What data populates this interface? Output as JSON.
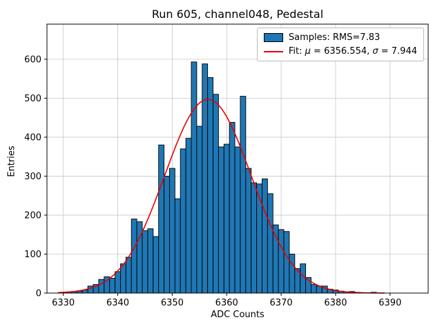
{
  "figure": {
    "title": "Run 605, channel048, Pedestal",
    "xlabel": "ADC Counts",
    "ylabel": "Entries"
  },
  "legend": {
    "samples_label": "Samples: RMS=7.83",
    "fit_prefix": "Fit: ",
    "fit_mu_symbol": "μ",
    "fit_mu_value": " = 6356.554, ",
    "fit_sigma_symbol": "σ",
    "fit_sigma_value": " = 7.944"
  },
  "chart_data": {
    "type": "bar",
    "subtype": "histogram-with-gaussian-fit",
    "title": "Run 605, channel048, Pedestal",
    "xlabel": "ADC Counts",
    "ylabel": "Entries",
    "bin_width": 1,
    "bin_centers_start": 6330,
    "counts": [
      2,
      3,
      4,
      5,
      8,
      18,
      22,
      35,
      42,
      38,
      55,
      75,
      92,
      190,
      183,
      160,
      165,
      145,
      380,
      300,
      320,
      242,
      370,
      397,
      593,
      428,
      588,
      553,
      510,
      375,
      382,
      438,
      375,
      505,
      320,
      283,
      280,
      293,
      255,
      175,
      163,
      158,
      100,
      63,
      75,
      40,
      22,
      18,
      18,
      10,
      8,
      5,
      3,
      4,
      2,
      1,
      1,
      2
    ],
    "samples_rms": 7.83,
    "fit": {
      "type": "gaussian",
      "mu": 6356.554,
      "sigma": 7.944,
      "amplitude": 497,
      "x_start": 6329,
      "x_end": 6389
    },
    "x_ticks": [
      6330,
      6340,
      6350,
      6360,
      6370,
      6380,
      6390
    ],
    "y_ticks": [
      0,
      100,
      200,
      300,
      400,
      500,
      600
    ],
    "xlim": [
      6327,
      6397
    ],
    "ylim": [
      0,
      690
    ],
    "grid": true,
    "legend_position": "upper right",
    "legend_entries": [
      "Samples: RMS=7.83",
      "Fit: μ = 6356.554, σ = 7.944"
    ],
    "colors": {
      "bar_fill": "#1f77b4",
      "bar_edge": "#000000",
      "fit_line": "#e60000",
      "grid": "#c8c8c8",
      "spine": "#000000"
    }
  }
}
